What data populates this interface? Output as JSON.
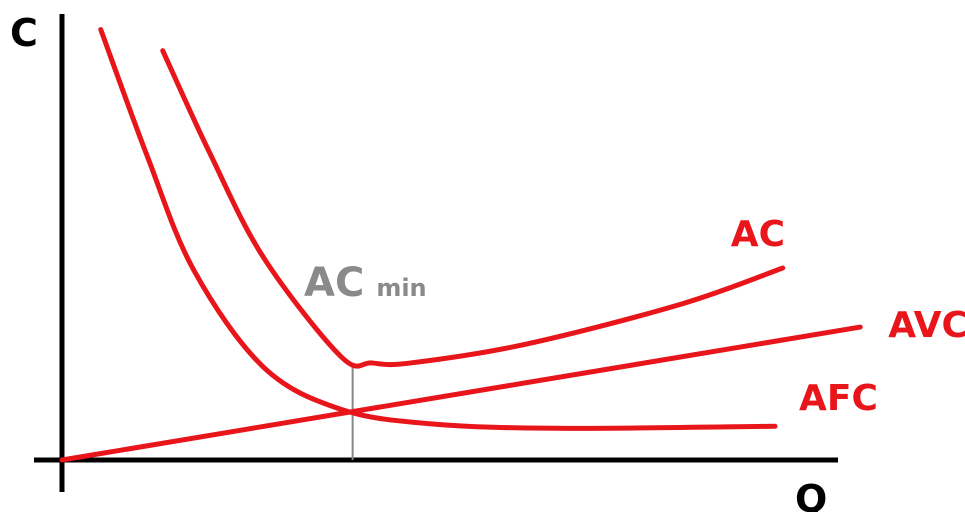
{
  "chart_data": {
    "type": "line",
    "title": "",
    "xlabel": "Q",
    "ylabel": "C",
    "grid": false,
    "xlim": [
      0,
      10
    ],
    "ylim": [
      0,
      10
    ],
    "series": [
      {
        "name": "AC",
        "color": "#e8151b",
        "points": [
          [
            1.3,
            9.7
          ],
          [
            1.9,
            7.3
          ],
          [
            2.6,
            4.8
          ],
          [
            3.6,
            2.45
          ],
          [
            4.0,
            2.3
          ],
          [
            4.5,
            2.3
          ],
          [
            6.0,
            2.75
          ],
          [
            8.0,
            3.7
          ],
          [
            9.3,
            4.55
          ]
        ]
      },
      {
        "name": "AVC",
        "color": "#e8151b",
        "points": [
          [
            0.0,
            0.0
          ],
          [
            10.3,
            3.15
          ]
        ]
      },
      {
        "name": "AFC",
        "color": "#e8151b",
        "points": [
          [
            0.5,
            10.2
          ],
          [
            1.1,
            7.2
          ],
          [
            1.7,
            4.5
          ],
          [
            2.6,
            2.2
          ],
          [
            3.6,
            1.2
          ],
          [
            4.8,
            0.85
          ],
          [
            6.5,
            0.75
          ],
          [
            9.2,
            0.8
          ]
        ]
      }
    ],
    "annotations": {
      "min_label_main": "AC",
      "min_label_sub": "min",
      "min_point": [
        3.75,
        2.3
      ],
      "intersection": [
        3.75,
        1.15
      ],
      "line_color": "#888888",
      "label_color": "#8a8a8a"
    }
  }
}
